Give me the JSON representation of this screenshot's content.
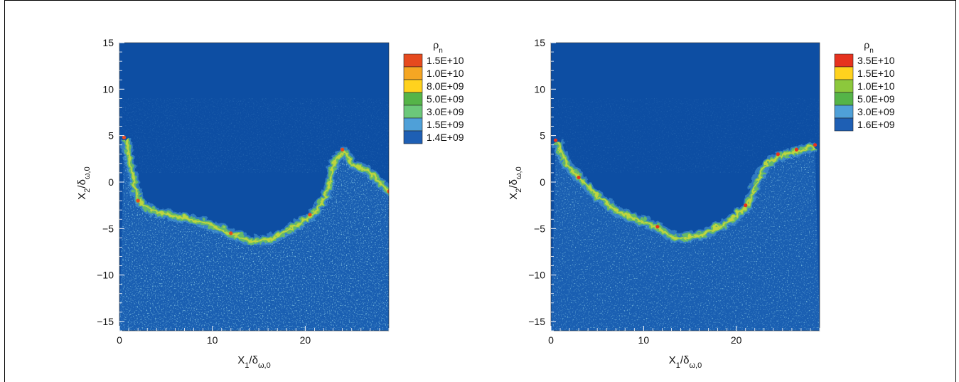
{
  "chart_data": [
    {
      "type": "heatmap",
      "xlabel": {
        "main": "X",
        "sub1": "1",
        "mid": "/δ",
        "sub2": "ω,0"
      },
      "ylabel": {
        "main": "X",
        "sub1": "2",
        "mid": "/δ",
        "sub2": "ω,0"
      },
      "xlim": [
        0,
        29
      ],
      "ylim": [
        -16,
        15
      ],
      "xticks": [
        0,
        10,
        20
      ],
      "yticks": [
        15,
        10,
        5,
        0,
        -5,
        -10,
        -15
      ],
      "colorbar": {
        "title": {
          "main": "ρ",
          "sub": "n"
        },
        "levels": [
          "1.5E+10",
          "1.0E+10",
          "8.0E+09",
          "5.0E+09",
          "3.0E+09",
          "1.5E+09",
          "1.4E+09"
        ],
        "colors": [
          "#e64a1e",
          "#f5a623",
          "#ffd21e",
          "#55b448",
          "#6cc87a",
          "#4fa0d8",
          "#1e5fb4"
        ]
      },
      "background_color": "#0d4ea3",
      "interface_shape": [
        [
          0.5,
          4.8
        ],
        [
          1.2,
          1.0
        ],
        [
          2.0,
          -2.0
        ],
        [
          3.5,
          -3.0
        ],
        [
          6.0,
          -3.5
        ],
        [
          9.0,
          -4.2
        ],
        [
          12.0,
          -5.5
        ],
        [
          14.0,
          -6.2
        ],
        [
          16.0,
          -6.0
        ],
        [
          18.0,
          -5.0
        ],
        [
          20.5,
          -3.5
        ],
        [
          22.0,
          -1.5
        ],
        [
          22.5,
          0.5
        ],
        [
          23.0,
          2.5
        ],
        [
          24.0,
          3.5
        ],
        [
          25.0,
          2.0
        ],
        [
          26.5,
          1.5
        ],
        [
          28.0,
          0.0
        ],
        [
          29.0,
          -1.0
        ]
      ]
    },
    {
      "type": "heatmap",
      "xlabel": {
        "main": "X",
        "sub1": "1",
        "mid": "/δ",
        "sub2": "ω,0"
      },
      "ylabel": {
        "main": "X",
        "sub1": "2",
        "mid": "/δ",
        "sub2": "ω,0"
      },
      "xlim": [
        0,
        29
      ],
      "ylim": [
        -16,
        15
      ],
      "xticks": [
        0,
        10,
        20
      ],
      "yticks": [
        15,
        10,
        5,
        0,
        -5,
        -10,
        -15
      ],
      "colorbar": {
        "title": {
          "main": "ρ",
          "sub": "n"
        },
        "levels": [
          "3.5E+10",
          "1.5E+10",
          "1.0E+10",
          "5.0E+09",
          "3.0E+09",
          "1.6E+09"
        ],
        "colors": [
          "#e6321e",
          "#ffd21e",
          "#8cc83c",
          "#55b448",
          "#4fa0d8",
          "#1e5fb4"
        ]
      },
      "background_color": "#0d4ea3",
      "interface_shape": [
        [
          0.5,
          4.5
        ],
        [
          1.5,
          2.0
        ],
        [
          3.0,
          0.5
        ],
        [
          5.0,
          -1.5
        ],
        [
          7.0,
          -3.0
        ],
        [
          9.0,
          -3.8
        ],
        [
          11.5,
          -4.8
        ],
        [
          13.5,
          -6.0
        ],
        [
          16.0,
          -5.5
        ],
        [
          18.5,
          -4.5
        ],
        [
          21.0,
          -2.5
        ],
        [
          22.0,
          0.0
        ],
        [
          23.0,
          2.0
        ],
        [
          24.5,
          3.0
        ],
        [
          26.5,
          3.5
        ],
        [
          28.5,
          4.0
        ]
      ]
    }
  ]
}
